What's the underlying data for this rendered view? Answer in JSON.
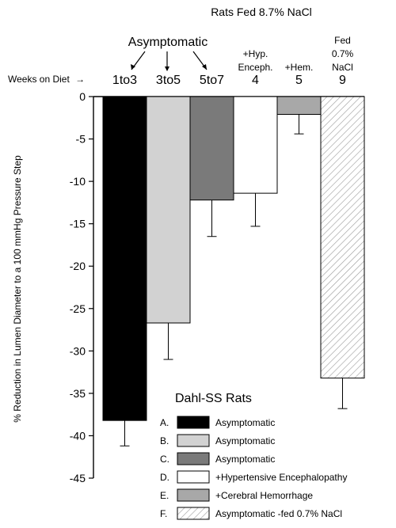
{
  "chart_data": {
    "type": "bar",
    "top_title": "Rats Fed 8.7% NaCl",
    "group_label": "Asymptomatic",
    "weeks_label": "Weeks on Diet",
    "weeks_arrow": "→",
    "ylabel": "% Reduction in Lumen Diameter to a 100 mmHg Pressure Step",
    "ylim": [
      -45,
      0
    ],
    "yticks": [
      0,
      -5,
      -10,
      -15,
      -20,
      -25,
      -30,
      -35,
      -40,
      -45
    ],
    "categories": [
      "1to3",
      "3to5",
      "5to7",
      "4",
      "5",
      "9"
    ],
    "column_headers": [
      [],
      [],
      [],
      [
        "+Hyp.",
        "Enceph."
      ],
      [
        "+Hem."
      ],
      [
        "Fed",
        "0.7%",
        "NaCl"
      ]
    ],
    "values": [
      -38.2,
      -26.7,
      -12.2,
      -11.4,
      -2.1,
      -33.2
    ],
    "errors": [
      3.0,
      4.3,
      4.3,
      3.9,
      2.3,
      3.6
    ],
    "colors": [
      "#000000",
      "#d2d2d2",
      "#7a7a7a",
      "#ffffff",
      "#a8a8a8",
      "hatch"
    ],
    "legend": {
      "title": "Dahl-SS Rats",
      "placement": "bottom-right",
      "entries": [
        {
          "letter": "A.",
          "label": "Asymptomatic",
          "color": "#000000"
        },
        {
          "letter": "B.",
          "label": "Asymptomatic",
          "color": "#d2d2d2"
        },
        {
          "letter": "C.",
          "label": "Asymptomatic",
          "color": "#7a7a7a"
        },
        {
          "letter": "D.",
          "label": "+Hypertensive Encephalopathy",
          "color": "#ffffff"
        },
        {
          "letter": "E.",
          "label": "+Cerebral Hemorrhage",
          "color": "#a8a8a8"
        },
        {
          "letter": "F.",
          "label": "Asymptomatic -fed 0.7% NaCl",
          "color": "hatch"
        }
      ]
    }
  }
}
